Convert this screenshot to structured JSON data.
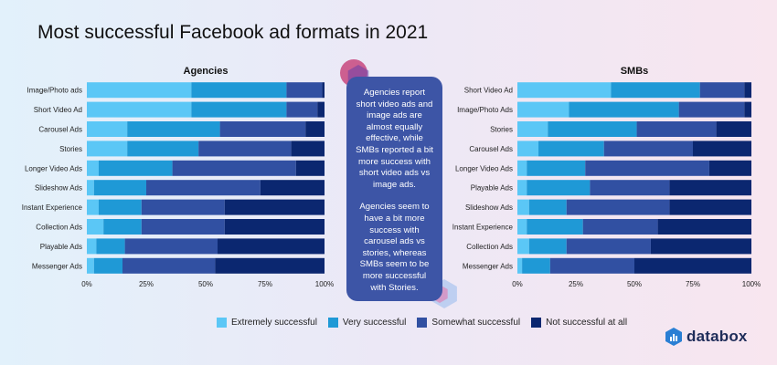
{
  "title": "Most successful Facebook ad formats in 2021",
  "legend": {
    "items": [
      {
        "label": "Extremely successful",
        "color": "#5bc7f6"
      },
      {
        "label": "Very successful",
        "color": "#1f99d6"
      },
      {
        "label": "Somewhat successful",
        "color": "#3150a2"
      },
      {
        "label": "Not successful at all",
        "color": "#0b2770"
      }
    ]
  },
  "callout": {
    "paragraph1": "Agencies report short video ads and image ads are almost equally effective, while SMBs reported a bit more success with short video ads vs image ads.",
    "paragraph2": "Agencies seem to have a bit more success with carousel ads vs stories, whereas SMBs seem to be more successful with Stories."
  },
  "brand": {
    "name": "databox",
    "icon": "databox-logo-icon"
  },
  "chart_data": [
    {
      "type": "bar",
      "orientation": "horizontal",
      "stacked": true,
      "normalized": true,
      "title": "Agencies",
      "categories": [
        "Image/Photo ads",
        "Short Video Ad",
        "Carousel Ads",
        "Stories",
        "Longer Video Ads",
        "Slideshow Ads",
        "Instant Experience",
        "Collection Ads",
        "Playable Ads",
        "Messenger Ads"
      ],
      "series": [
        {
          "name": "Extremely successful",
          "values": [
            44,
            44,
            17,
            17,
            5,
            3,
            5,
            7,
            4,
            3
          ]
        },
        {
          "name": "Very successful",
          "values": [
            40,
            40,
            39,
            30,
            31,
            22,
            18,
            16,
            12,
            12
          ]
        },
        {
          "name": "Somewhat successful",
          "values": [
            15,
            13,
            36,
            39,
            52,
            48,
            35,
            35,
            39,
            39
          ]
        },
        {
          "name": "Not successful at all",
          "values": [
            1,
            3,
            8,
            14,
            12,
            27,
            42,
            42,
            45,
            46
          ]
        }
      ],
      "xticks": [
        "0%",
        "25%",
        "50%",
        "75%",
        "100%"
      ],
      "xlim": [
        0,
        100
      ]
    },
    {
      "type": "bar",
      "orientation": "horizontal",
      "stacked": true,
      "normalized": true,
      "title": "SMBs",
      "categories": [
        "Short Video Ad",
        "Image/Photo Ads",
        "Stories",
        "Carousel Ads",
        "Longer Video Ads",
        "Playable Ads",
        "Slideshow Ads",
        "Instant Experience",
        "Collection Ads",
        "Messenger Ads"
      ],
      "series": [
        {
          "name": "Extremely successful",
          "values": [
            40,
            22,
            13,
            9,
            4,
            4,
            5,
            4,
            5,
            2
          ]
        },
        {
          "name": "Very successful",
          "values": [
            38,
            47,
            38,
            28,
            25,
            27,
            16,
            24,
            16,
            12
          ]
        },
        {
          "name": "Somewhat successful",
          "values": [
            19,
            28,
            34,
            38,
            53,
            34,
            44,
            32,
            36,
            36
          ]
        },
        {
          "name": "Not successful at all",
          "values": [
            3,
            3,
            15,
            25,
            18,
            35,
            35,
            40,
            43,
            50
          ]
        }
      ],
      "xticks": [
        "0%",
        "25%",
        "50%",
        "75%",
        "100%"
      ],
      "xlim": [
        0,
        100
      ]
    }
  ]
}
